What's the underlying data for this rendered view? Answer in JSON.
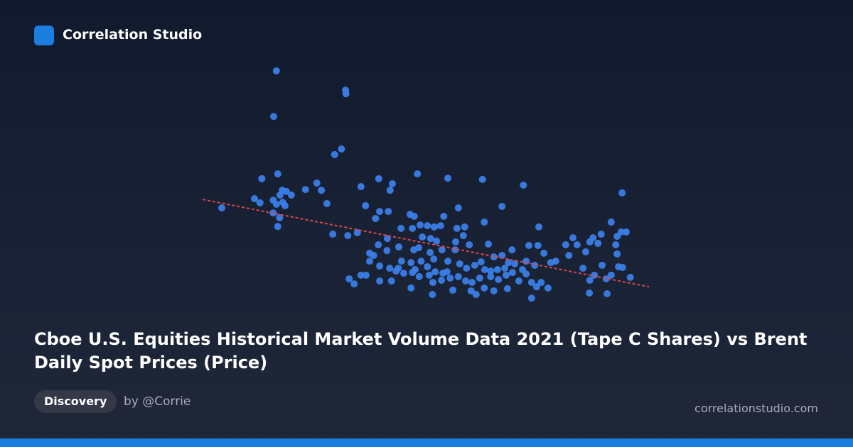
{
  "header": {
    "brand": "Correlation Studio"
  },
  "chart_data": {
    "type": "scatter",
    "title": "Cboe U.S. Equities Historical Market Volume Data 2021 (Tape C Shares) vs Brent Daily Spot Prices (Price)",
    "color": "#3b7ee8",
    "xlim": [
      0,
      100
    ],
    "ylim": [
      0,
      100
    ],
    "x": [
      17,
      32.2,
      32.3,
      16.4,
      31.3,
      29.8,
      17.3,
      13.8,
      39.5,
      48,
      54.7,
      62.3,
      71.3,
      42.5,
      25.9,
      35.6,
      18.3,
      19.2,
      23.4,
      26.9,
      42,
      93,
      17.8,
      20.3,
      12.2,
      16.3,
      18.4,
      13.4,
      17,
      18.9,
      28.1,
      5,
      36.6,
      66.6,
      57,
      16.3,
      39.7,
      41.6,
      46.4,
      47.3,
      53.8,
      17.7,
      38.8,
      62.7,
      90.6,
      17.3,
      44.4,
      46.9,
      48.6,
      50.2,
      51.7,
      53.1,
      56.7,
      58.4,
      74.7,
      29.4,
      32.7,
      34.8,
      41.4,
      49.1,
      50.9,
      58.1,
      52.2,
      56.4,
      86.6,
      88.4,
      92.8,
      93.9,
      91.9,
      82.2,
      39.4,
      37.5,
      41.3,
      38.4,
      43.9,
      47.2,
      48.3,
      50.8,
      53.4,
      56.3,
      59.4,
      63.6,
      68.8,
      72.5,
      74.5,
      75.8,
      80.6,
      83.1,
      85.9,
      87.7,
      91.6,
      91.9,
      85,
      37.5,
      39.7,
      41.9,
      44.5,
      46.6,
      48.8,
      51.6,
      54.7,
      57.3,
      60.6,
      62,
      64.8,
      66.6,
      68,
      69.4,
      71.9,
      73.8,
      77.3,
      78.4,
      81.3,
      84.4,
      88.6,
      92.2,
      93.1,
      33,
      34.1,
      35.6,
      36.7,
      39.7,
      42.3,
      43.3,
      45,
      46.9,
      48.4,
      50.6,
      51.4,
      53.3,
      55.2,
      57,
      58.6,
      60,
      61.7,
      64.1,
      65.8,
      67.5,
      70.3,
      71.9,
      73.1,
      75.2,
      76.7,
      85.9,
      86.9,
      89.5,
      90.6,
      94.8,
      46.6,
      51.3,
      55.8,
      59.8,
      60.9,
      62.7,
      64.8,
      67.8,
      73.1,
      85.8,
      89.7,
      74.2,
      53.6,
      50.2,
      47.5,
      64.1,
      65.6,
      58.8,
      43.8,
      51.9,
      54.5,
      62.8,
      67.2,
      68.9,
      71.1
    ],
    "y": [
      97.1,
      89.1,
      87.6,
      78.2,
      64.7,
      62.4,
      54.4,
      52.4,
      52.4,
      54.4,
      52.6,
      52.1,
      49.7,
      50.3,
      50.6,
      49.1,
      47.6,
      47.1,
      47.9,
      47.6,
      47.6,
      46.5,
      45.6,
      45.6,
      44.1,
      43.5,
      42.6,
      42.4,
      41.8,
      41.2,
      42.1,
      40.3,
      41.2,
      40.9,
      40.3,
      38.2,
      38.8,
      38.8,
      37.6,
      36.8,
      36.8,
      36.2,
      35.9,
      34.4,
      34.4,
      32.6,
      31.8,
      31.8,
      33.2,
      32.9,
      32.4,
      32.9,
      31.8,
      32.4,
      32.4,
      29.4,
      28.8,
      30,
      27.6,
      28.2,
      27.6,
      28.8,
      26.5,
      26.2,
      27.9,
      29.4,
      30.3,
      30.3,
      28.5,
      27.9,
      25,
      21.5,
      22.6,
      20.6,
      24.1,
      22.9,
      23.8,
      21.8,
      22.9,
      22.9,
      25,
      25.3,
      22.9,
      24.7,
      24.7,
      21.5,
      25,
      25,
      26.2,
      25.6,
      25,
      21.2,
      22.1,
      18.2,
      16.2,
      15.3,
      18.2,
      17.6,
      18.2,
      19.1,
      18.2,
      17.1,
      16.5,
      17.9,
      20,
      20.6,
      17.6,
      17.1,
      18.2,
      16.5,
      17.6,
      18.2,
      20.6,
      15.3,
      16.5,
      15.9,
      15.6,
      10.9,
      8.8,
      12.4,
      12.4,
      10,
      10,
      14.1,
      13.2,
      13.5,
      11.8,
      12.4,
      9.4,
      10.3,
      11.2,
      11.8,
      10,
      9.4,
      11.2,
      11.8,
      10.6,
      12.4,
      10,
      12.9,
      9.4,
      9.4,
      7.1,
      10.3,
      12.4,
      10.9,
      12.4,
      11.5,
      7.1,
      4.4,
      6.2,
      5.9,
      4.4,
      7.1,
      5.9,
      6.8,
      2.9,
      5,
      4.7,
      7.6,
      13.2,
      15.9,
      14.7,
      14.1,
      14.7,
      15.3,
      15.3,
      13.8,
      13.8,
      14.7,
      15.3,
      13.5,
      14.7
    ],
    "trendline": {
      "x": [
        0.8,
        98.9
      ],
      "y": [
        43.8,
        7.6
      ],
      "color": "#d9484a"
    }
  },
  "footer": {
    "tag": "Discovery",
    "author": "by @Corrie",
    "site": "correlationstudio.com"
  }
}
